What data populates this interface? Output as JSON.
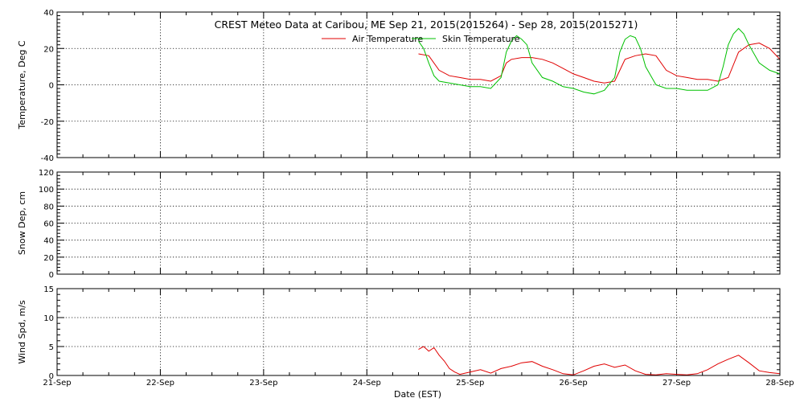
{
  "title": "CREST Meteo Data at Caribou, ME   Sep 21, 2015(2015264) - Sep 28, 2015(2015271)",
  "colors": {
    "air": "#e00000",
    "skin": "#00c000",
    "wind": "#e00000"
  },
  "chart_data": [
    {
      "type": "line",
      "ylabel": "Temperature, Deg C",
      "ylim": [
        -40,
        40
      ],
      "yticks": [
        -40,
        -20,
        0,
        20,
        40
      ],
      "ygrid": [
        -20,
        0,
        20
      ],
      "xlim": [
        0,
        7
      ],
      "legend": {
        "placement": "top-center",
        "entries": [
          "Air Temperature",
          "Skin Temperature"
        ]
      },
      "series": [
        {
          "name": "Air Temperature",
          "x": [
            3.5,
            3.6,
            3.7,
            3.8,
            3.9,
            4.0,
            4.1,
            4.2,
            4.3,
            4.35,
            4.4,
            4.5,
            4.6,
            4.7,
            4.8,
            4.9,
            5.0,
            5.1,
            5.2,
            5.3,
            5.4,
            5.5,
            5.6,
            5.7,
            5.8,
            5.9,
            6.0,
            6.1,
            6.2,
            6.3,
            6.4,
            6.5,
            6.6,
            6.7,
            6.8,
            6.9,
            7.0
          ],
          "y": [
            17,
            16,
            8,
            5,
            4,
            3,
            3,
            2,
            5,
            12,
            14,
            15,
            15,
            14,
            12,
            9,
            6,
            4,
            2,
            1,
            2,
            14,
            16,
            17,
            16,
            8,
            5,
            4,
            3,
            3,
            2,
            4,
            18,
            22,
            23,
            20,
            14
          ]
        },
        {
          "name": "Skin Temperature",
          "x": [
            3.5,
            3.55,
            3.6,
            3.65,
            3.7,
            3.8,
            3.9,
            4.0,
            4.1,
            4.2,
            4.3,
            4.35,
            4.4,
            4.45,
            4.5,
            4.55,
            4.6,
            4.7,
            4.8,
            4.9,
            5.0,
            5.1,
            5.2,
            5.3,
            5.4,
            5.45,
            5.5,
            5.55,
            5.6,
            5.65,
            5.7,
            5.8,
            5.9,
            6.0,
            6.1,
            6.2,
            6.3,
            6.4,
            6.45,
            6.5,
            6.55,
            6.6,
            6.65,
            6.7,
            6.8,
            6.9,
            7.0
          ],
          "y": [
            24,
            20,
            12,
            5,
            2,
            1,
            0,
            -1,
            -1,
            -2,
            4,
            18,
            24,
            27,
            25,
            22,
            12,
            4,
            2,
            -1,
            -2,
            -4,
            -5,
            -3,
            4,
            18,
            25,
            27,
            26,
            20,
            10,
            0,
            -2,
            -2,
            -3,
            -3,
            -3,
            0,
            10,
            22,
            28,
            31,
            28,
            22,
            12,
            8,
            6
          ]
        }
      ]
    },
    {
      "type": "line",
      "ylabel": "Snow Dep, cm",
      "ylim": [
        0,
        120
      ],
      "yticks": [
        0,
        20,
        40,
        60,
        80,
        100,
        120
      ],
      "ygrid": [
        20,
        40,
        60,
        80,
        100,
        120
      ],
      "xlim": [
        0,
        7
      ],
      "series": []
    },
    {
      "type": "line",
      "ylabel": "Wind Spd, m/s",
      "ylim": [
        0,
        15
      ],
      "yticks": [
        0,
        5,
        10,
        15
      ],
      "ygrid": [
        5,
        10
      ],
      "xlim": [
        0,
        7
      ],
      "xlabel": "Date (EST)",
      "xticks": [
        {
          "x": 0,
          "label": "21-Sep"
        },
        {
          "x": 1,
          "label": "22-Sep"
        },
        {
          "x": 2,
          "label": "23-Sep"
        },
        {
          "x": 3,
          "label": "24-Sep"
        },
        {
          "x": 4,
          "label": "25-Sep"
        },
        {
          "x": 5,
          "label": "26-Sep"
        },
        {
          "x": 6,
          "label": "27-Sep"
        },
        {
          "x": 7,
          "label": "28-Sep"
        }
      ],
      "series": [
        {
          "x": [
            3.5,
            3.55,
            3.6,
            3.65,
            3.7,
            3.75,
            3.8,
            3.85,
            3.9,
            4.0,
            4.1,
            4.2,
            4.3,
            4.4,
            4.5,
            4.6,
            4.7,
            4.8,
            4.9,
            5.0,
            5.1,
            5.2,
            5.3,
            5.4,
            5.5,
            5.6,
            5.7,
            5.8,
            5.9,
            6.0,
            6.1,
            6.2,
            6.3,
            6.4,
            6.5,
            6.6,
            6.7,
            6.8,
            6.9,
            7.0
          ],
          "y": [
            4.5,
            5.0,
            4.2,
            4.8,
            3.5,
            2.5,
            1.2,
            0.6,
            0.2,
            0.6,
            1.0,
            0.4,
            1.2,
            1.6,
            2.2,
            2.4,
            1.6,
            1.0,
            0.3,
            0.1,
            0.8,
            1.6,
            2.0,
            1.4,
            1.8,
            0.8,
            0.2,
            0.1,
            0.3,
            0.2,
            0.1,
            0.3,
            1.0,
            2.0,
            2.8,
            3.5,
            2.2,
            0.8,
            0.5,
            0.3
          ]
        }
      ]
    }
  ]
}
